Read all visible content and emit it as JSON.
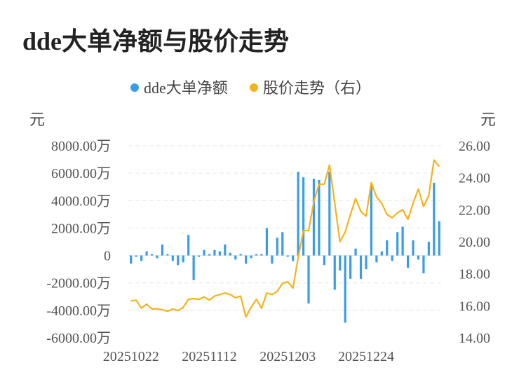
{
  "page_title": "dde大单净额与股价走势",
  "colors": {
    "bar": "#3a9ce8",
    "line": "#f5b31a",
    "grid": "#e6e6e6"
  },
  "chart_data": {
    "type": "bar",
    "title": "dde大单净额与股价走势",
    "legend": [
      "dde大单净额",
      "股价走势（右）"
    ],
    "left_axis": {
      "unit": "元",
      "range": [
        -6000,
        8000
      ],
      "ticks": [
        "8000.00万",
        "6000.00万",
        "4000.00万",
        "2000.00万",
        "0",
        "-2000.00万",
        "-4000.00万",
        "-6000.00万"
      ],
      "tick_values": [
        8000,
        6000,
        4000,
        2000,
        0,
        -2000,
        -4000,
        -6000
      ]
    },
    "right_axis": {
      "unit": "元",
      "range": [
        14,
        26
      ],
      "ticks": [
        "26.00",
        "24.00",
        "22.00",
        "20.00",
        "18.00",
        "16.00",
        "14.00"
      ],
      "tick_values": [
        26,
        24,
        22,
        20,
        18,
        16,
        14
      ]
    },
    "x_tick_labels": [
      "20251022",
      "20251112",
      "20251203",
      "20251224"
    ],
    "x_tick_indices": [
      0,
      15,
      30,
      45
    ],
    "series": [
      {
        "name": "dde大单净额",
        "type": "bar",
        "axis": "left",
        "values": [
          -600,
          -100,
          -400,
          300,
          100,
          -200,
          800,
          100,
          -400,
          -700,
          -500,
          1500,
          -1800,
          -100,
          400,
          100,
          400,
          300,
          800,
          200,
          -300,
          100,
          -600,
          -200,
          100,
          100,
          2000,
          -600,
          1300,
          1700,
          -100,
          -400,
          6100,
          5700,
          -3500,
          5600,
          5500,
          -700,
          6100,
          -2500,
          -1100,
          -4900,
          -1700,
          500,
          -1700,
          -1000,
          5200,
          -500,
          300,
          1100,
          -400,
          1700,
          2100,
          -900,
          1100,
          -300,
          -1300,
          1000,
          5300,
          2500
        ]
      },
      {
        "name": "股价走势（右）",
        "type": "line",
        "axis": "right",
        "values": [
          16.3,
          16.35,
          15.85,
          16.1,
          15.8,
          15.8,
          15.75,
          15.65,
          15.8,
          15.7,
          15.9,
          16.4,
          16.45,
          16.4,
          16.55,
          16.35,
          16.6,
          16.7,
          16.8,
          16.7,
          16.5,
          16.6,
          15.3,
          15.9,
          16.4,
          15.85,
          16.8,
          16.7,
          16.9,
          17.4,
          17.5,
          17.1,
          19.0,
          20.7,
          20.7,
          22.5,
          23.6,
          23.6,
          24.8,
          22.4,
          20.0,
          20.6,
          21.7,
          22.7,
          21.9,
          21.6,
          23.7,
          22.8,
          22.4,
          21.7,
          21.5,
          21.8,
          22.0,
          21.4,
          22.4,
          23.3,
          22.2,
          22.9,
          25.1,
          24.7
        ]
      }
    ]
  }
}
